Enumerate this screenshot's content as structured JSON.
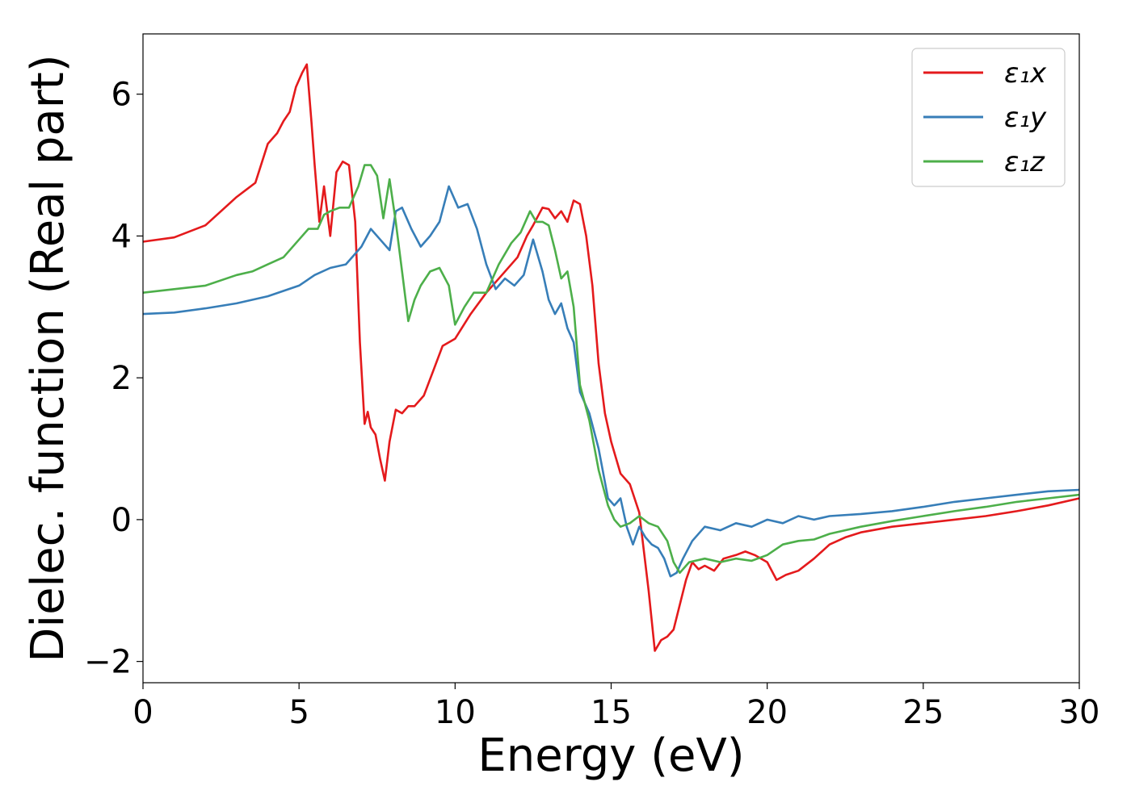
{
  "chart_data": {
    "type": "line",
    "title": "",
    "xlabel": "Energy (eV)",
    "ylabel": "Dielec. function (Real part)",
    "xlim": [
      0,
      30
    ],
    "ylim": [
      -2.3,
      6.85
    ],
    "xticks": [
      0,
      5,
      10,
      15,
      20,
      25,
      30
    ],
    "xtick_labels": [
      "0",
      "5",
      "10",
      "15",
      "20",
      "25",
      "30"
    ],
    "yticks": [
      -2,
      0,
      2,
      4,
      6
    ],
    "ytick_labels": [
      "−2",
      "0",
      "2",
      "4",
      "6"
    ],
    "grid": false,
    "legend_position": "top-right",
    "series": [
      {
        "name": "ε₁x",
        "color": "#e41a1c",
        "x": [
          0,
          1,
          2,
          3,
          3.3,
          3.6,
          4,
          4.3,
          4.5,
          4.7,
          4.9,
          5.1,
          5.25,
          5.4,
          5.5,
          5.65,
          5.8,
          6.0,
          6.2,
          6.4,
          6.6,
          6.8,
          6.95,
          7.1,
          7.2,
          7.3,
          7.45,
          7.6,
          7.75,
          7.9,
          8.1,
          8.3,
          8.5,
          8.7,
          9.0,
          9.3,
          9.6,
          10.0,
          10.5,
          11.0,
          11.5,
          12.0,
          12.3,
          12.5,
          12.8,
          13.0,
          13.2,
          13.4,
          13.6,
          13.8,
          14.0,
          14.2,
          14.4,
          14.6,
          14.8,
          15.0,
          15.3,
          15.6,
          15.9,
          16.2,
          16.4,
          16.6,
          16.8,
          17.0,
          17.2,
          17.4,
          17.6,
          17.8,
          18.0,
          18.3,
          18.6,
          19.0,
          19.3,
          19.6,
          20.0,
          20.3,
          20.6,
          21.0,
          21.5,
          22.0,
          22.5,
          23.0,
          24.0,
          25.0,
          26.0,
          27.0,
          28.0,
          29.0,
          30.0
        ],
        "values": [
          3.92,
          3.98,
          4.15,
          4.55,
          4.65,
          4.75,
          5.3,
          5.45,
          5.62,
          5.75,
          6.1,
          6.3,
          6.42,
          5.6,
          5.0,
          4.2,
          4.7,
          4.0,
          4.9,
          5.05,
          5.0,
          4.2,
          2.5,
          1.35,
          1.52,
          1.3,
          1.2,
          0.85,
          0.55,
          1.1,
          1.55,
          1.5,
          1.6,
          1.6,
          1.75,
          2.1,
          2.45,
          2.55,
          2.9,
          3.2,
          3.45,
          3.7,
          4.0,
          4.15,
          4.4,
          4.38,
          4.25,
          4.35,
          4.2,
          4.5,
          4.45,
          4.0,
          3.3,
          2.2,
          1.5,
          1.1,
          0.65,
          0.5,
          0.1,
          -1.0,
          -1.85,
          -1.7,
          -1.65,
          -1.55,
          -1.2,
          -0.85,
          -0.6,
          -0.7,
          -0.65,
          -0.72,
          -0.55,
          -0.5,
          -0.45,
          -0.5,
          -0.6,
          -0.85,
          -0.78,
          -0.72,
          -0.55,
          -0.35,
          -0.25,
          -0.18,
          -0.1,
          -0.05,
          0.0,
          0.05,
          0.12,
          0.2,
          0.3
        ]
      },
      {
        "name": "ε₁y",
        "color": "#377eb8",
        "x": [
          0,
          1,
          2,
          3,
          4,
          5,
          5.5,
          6.0,
          6.5,
          7.0,
          7.3,
          7.6,
          7.9,
          8.1,
          8.3,
          8.6,
          8.9,
          9.2,
          9.5,
          9.8,
          10.1,
          10.4,
          10.7,
          11.0,
          11.3,
          11.6,
          11.9,
          12.2,
          12.5,
          12.8,
          13.0,
          13.2,
          13.4,
          13.6,
          13.8,
          14.0,
          14.3,
          14.6,
          14.9,
          15.1,
          15.3,
          15.5,
          15.7,
          15.9,
          16.1,
          16.3,
          16.5,
          16.7,
          16.9,
          17.1,
          17.3,
          17.6,
          18.0,
          18.5,
          19.0,
          19.5,
          20.0,
          20.5,
          21.0,
          21.5,
          22.0,
          23.0,
          24.0,
          25.0,
          26.0,
          27.0,
          28.0,
          29.0,
          30.0
        ],
        "values": [
          2.9,
          2.92,
          2.98,
          3.05,
          3.15,
          3.3,
          3.45,
          3.55,
          3.6,
          3.85,
          4.1,
          3.95,
          3.8,
          4.35,
          4.4,
          4.1,
          3.85,
          4.0,
          4.2,
          4.7,
          4.4,
          4.45,
          4.1,
          3.6,
          3.25,
          3.4,
          3.3,
          3.45,
          3.95,
          3.5,
          3.1,
          2.9,
          3.05,
          2.7,
          2.5,
          1.8,
          1.5,
          1.0,
          0.3,
          0.2,
          0.3,
          -0.1,
          -0.35,
          -0.1,
          -0.25,
          -0.35,
          -0.4,
          -0.55,
          -0.8,
          -0.75,
          -0.55,
          -0.3,
          -0.1,
          -0.15,
          -0.05,
          -0.1,
          0.0,
          -0.05,
          0.05,
          0.0,
          0.05,
          0.08,
          0.12,
          0.18,
          0.25,
          0.3,
          0.35,
          0.4,
          0.42
        ]
      },
      {
        "name": "ε₁z",
        "color": "#4daf4a",
        "x": [
          0,
          1,
          2,
          3,
          3.5,
          4.0,
          4.5,
          5.0,
          5.3,
          5.6,
          5.8,
          6.0,
          6.3,
          6.6,
          6.9,
          7.1,
          7.3,
          7.5,
          7.7,
          7.9,
          8.1,
          8.3,
          8.5,
          8.7,
          8.9,
          9.2,
          9.5,
          9.8,
          10.0,
          10.3,
          10.6,
          11.0,
          11.4,
          11.8,
          12.1,
          12.4,
          12.6,
          12.8,
          13.0,
          13.2,
          13.4,
          13.6,
          13.8,
          14.0,
          14.3,
          14.6,
          14.9,
          15.1,
          15.3,
          15.6,
          15.9,
          16.2,
          16.5,
          16.8,
          17.0,
          17.2,
          17.5,
          18.0,
          18.5,
          19.0,
          19.5,
          20.0,
          20.5,
          21.0,
          21.5,
          22.0,
          23.0,
          24.0,
          25.0,
          26.0,
          27.0,
          28.0,
          29.0,
          30.0
        ],
        "values": [
          3.2,
          3.25,
          3.3,
          3.45,
          3.5,
          3.6,
          3.7,
          3.95,
          4.1,
          4.1,
          4.3,
          4.35,
          4.4,
          4.4,
          4.7,
          5.0,
          5.0,
          4.85,
          4.25,
          4.8,
          4.2,
          3.5,
          2.8,
          3.1,
          3.3,
          3.5,
          3.55,
          3.3,
          2.75,
          3.0,
          3.2,
          3.2,
          3.6,
          3.9,
          4.05,
          4.35,
          4.2,
          4.2,
          4.15,
          3.8,
          3.4,
          3.5,
          3.0,
          1.9,
          1.4,
          0.7,
          0.2,
          0.0,
          -0.1,
          -0.05,
          0.05,
          -0.05,
          -0.1,
          -0.3,
          -0.6,
          -0.75,
          -0.6,
          -0.55,
          -0.6,
          -0.55,
          -0.58,
          -0.5,
          -0.35,
          -0.3,
          -0.28,
          -0.2,
          -0.1,
          -0.02,
          0.05,
          0.12,
          0.18,
          0.25,
          0.3,
          0.35
        ]
      }
    ]
  }
}
